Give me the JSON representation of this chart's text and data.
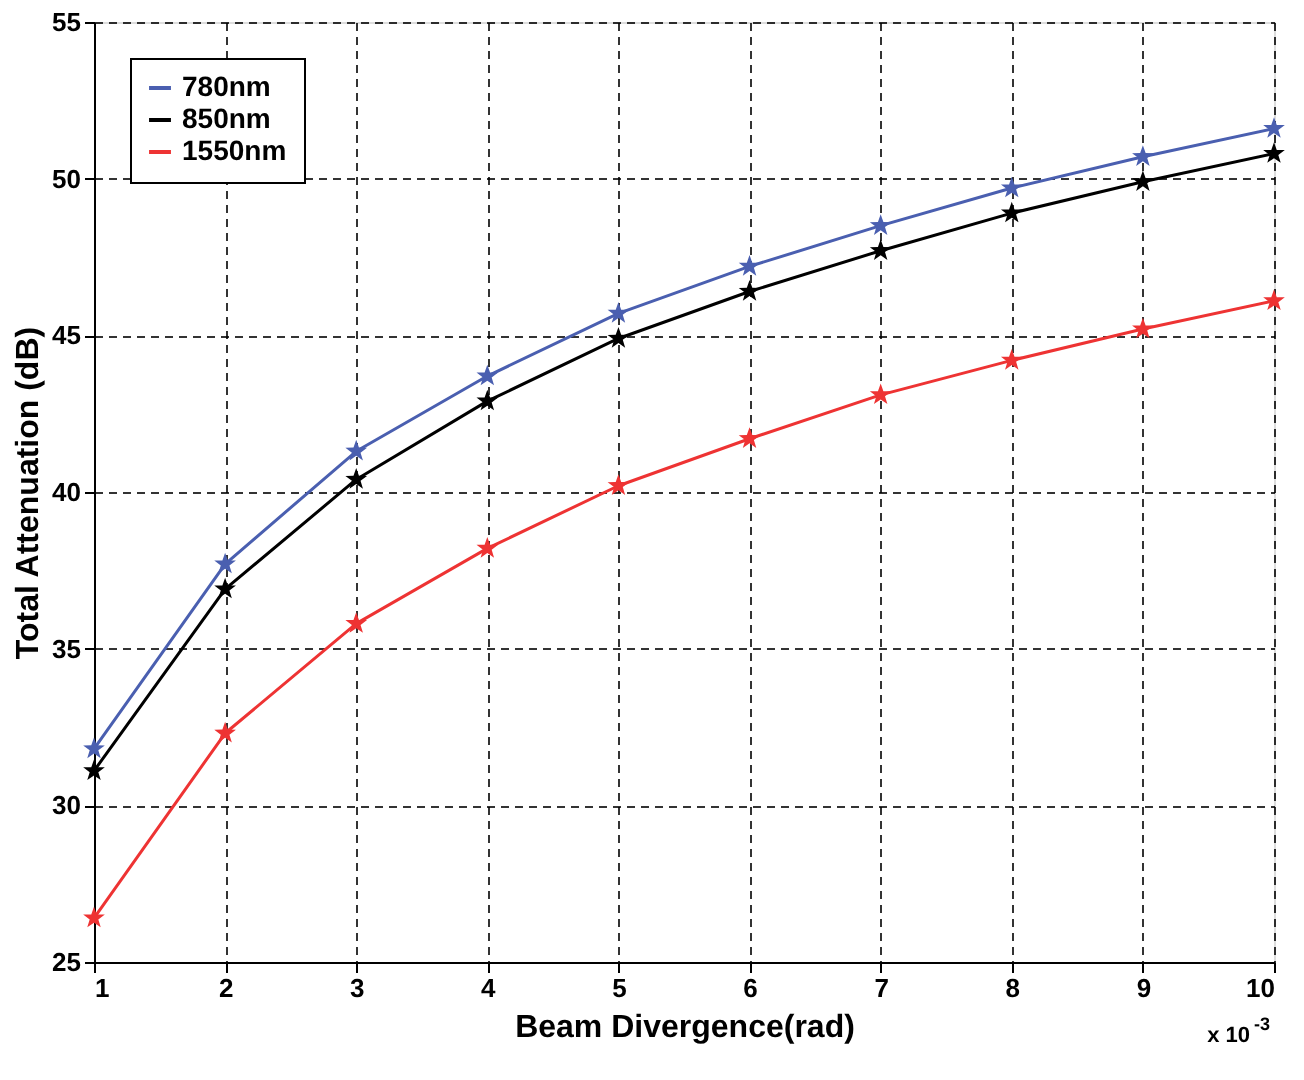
{
  "chart_data": {
    "type": "line",
    "xlabel": "Beam Divergence(rad)",
    "ylabel": "Total Attenuation (dB)",
    "x": [
      1,
      2,
      3,
      4,
      5,
      6,
      7,
      8,
      9,
      10
    ],
    "series": [
      {
        "name": "780nm",
        "color": "#4a5fb0",
        "values": [
          31.8,
          37.7,
          41.3,
          43.7,
          45.7,
          47.2,
          48.5,
          49.7,
          50.7,
          51.6
        ]
      },
      {
        "name": "850nm",
        "color": "#000000",
        "values": [
          31.1,
          36.9,
          40.4,
          42.9,
          44.9,
          46.4,
          47.7,
          48.9,
          49.9,
          50.8
        ]
      },
      {
        "name": "1550nm",
        "color": "#ee3333",
        "values": [
          26.4,
          32.3,
          35.8,
          38.2,
          40.2,
          41.7,
          43.1,
          44.2,
          45.2,
          46.1
        ]
      }
    ],
    "xlim": [
      1,
      10
    ],
    "xticks": [
      1,
      2,
      3,
      4,
      5,
      6,
      7,
      8,
      9,
      10
    ],
    "ylim": [
      25,
      55
    ],
    "yticks": [
      25,
      30,
      35,
      40,
      45,
      50,
      55
    ],
    "annotations": [
      "x 10$^{-3}$"
    ],
    "grid": true,
    "legend": "top left",
    "marker": "star",
    "line_style": "solid"
  }
}
